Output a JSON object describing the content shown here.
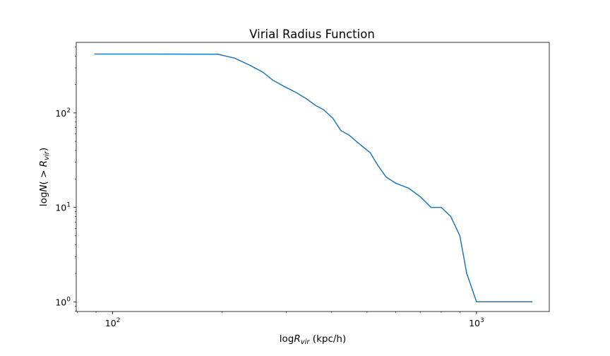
{
  "chart_data": {
    "type": "line",
    "title": "Virial Radius Function",
    "xlabel": {
      "prefix": "log",
      "symbol": "R",
      "subscript": "vir",
      "suffix": " (kpc/h)"
    },
    "ylabel": {
      "prefix": "log",
      "symbol": "N",
      "open": "( > ",
      "symbol2": "R",
      "subscript": "vir",
      "close": ")"
    },
    "xscale": "log",
    "yscale": "log",
    "xlim": [
      79.4,
      1585
    ],
    "ylim": [
      0.79,
      558
    ],
    "x_ticks": [
      {
        "value": 100,
        "base": "10",
        "exp": "2"
      },
      {
        "value": 1000,
        "base": "10",
        "exp": "3"
      }
    ],
    "y_ticks": [
      {
        "value": 1,
        "base": "10",
        "exp": "0"
      },
      {
        "value": 10,
        "base": "10",
        "exp": "1"
      },
      {
        "value": 100,
        "base": "10",
        "exp": "2"
      }
    ],
    "grid": false,
    "legend": "none",
    "series": [
      {
        "color": "#1f77b4",
        "x": [
          89.3,
          122.3,
          194.4,
          216.4,
          238.1,
          258.7,
          275.5,
          296.4,
          318.8,
          340.0,
          361.0,
          380.0,
          402.6,
          424.0,
          446.9,
          470.0,
          490.0,
          510.0,
          535.0,
          564.0,
          600.0,
          650.0,
          700.0,
          750.0,
          800.0,
          850.0,
          900.0,
          940.0,
          1000.0,
          1100.0,
          1350.0,
          1420.0
        ],
        "y": [
          420,
          420,
          418,
          380,
          320,
          270,
          222,
          190,
          165,
          142,
          120,
          108,
          88,
          65,
          58,
          49,
          43,
          38,
          28,
          21,
          18,
          16,
          13,
          10,
          10,
          8,
          5,
          2,
          1,
          1,
          1,
          1
        ]
      }
    ]
  }
}
